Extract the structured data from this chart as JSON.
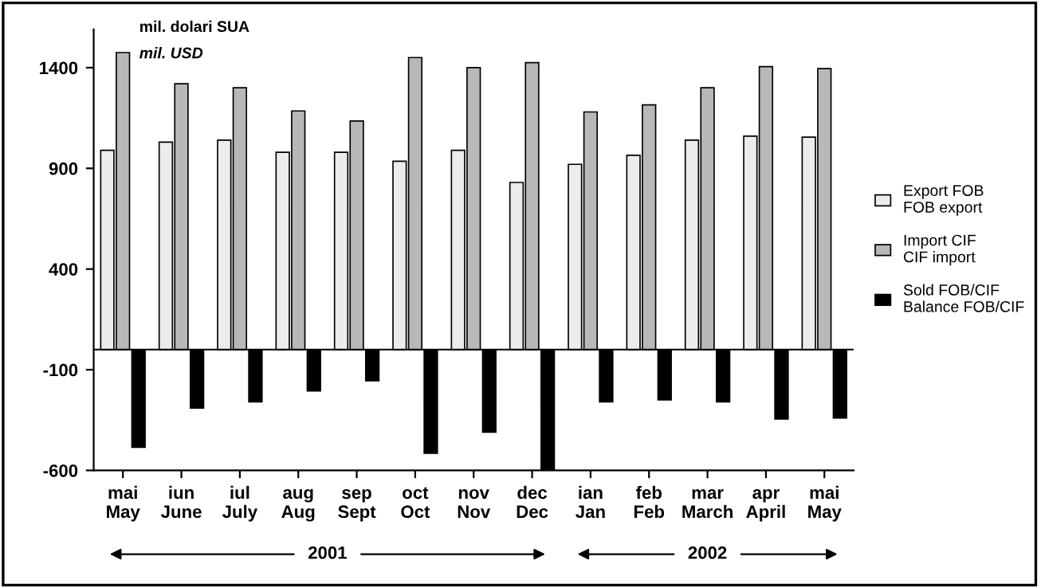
{
  "chart_data": {
    "type": "bar",
    "categories": [
      "mai\nMay",
      "iun\nJune",
      "iul\nJuly",
      "aug\nAug",
      "sep\nSept",
      "oct\nOct",
      "nov\nNov",
      "dec\nDec",
      "ian\nJan",
      "feb\nFeb",
      "mar\nMarch",
      "apr\nApril",
      "mai\nMay"
    ],
    "series": [
      {
        "name": "Export FOB\nFOB export",
        "color": "#ececec",
        "values": [
          990,
          1030,
          1040,
          980,
          980,
          935,
          990,
          830,
          920,
          965,
          1040,
          1060,
          1055
        ]
      },
      {
        "name": "Import CIF\nCIF import",
        "color": "#b8b8b8",
        "values": [
          1475,
          1320,
          1300,
          1185,
          1135,
          1450,
          1400,
          1425,
          1180,
          1215,
          1300,
          1405,
          1395
        ]
      },
      {
        "name": "Sold FOB/CIF\nBalance FOB/CIF",
        "color": "#000000",
        "values": [
          -485,
          -290,
          -260,
          -205,
          -155,
          -515,
          -410,
          -595,
          -260,
          -250,
          -260,
          -345,
          -340
        ]
      }
    ],
    "ylim": [
      -600,
      1590
    ],
    "yticks": [
      -600,
      -100,
      400,
      900,
      1400
    ],
    "annotations": [
      "mil. dolari SUA",
      "mil. USD",
      "2001",
      "2002"
    ],
    "grid": false,
    "legend": "right"
  }
}
